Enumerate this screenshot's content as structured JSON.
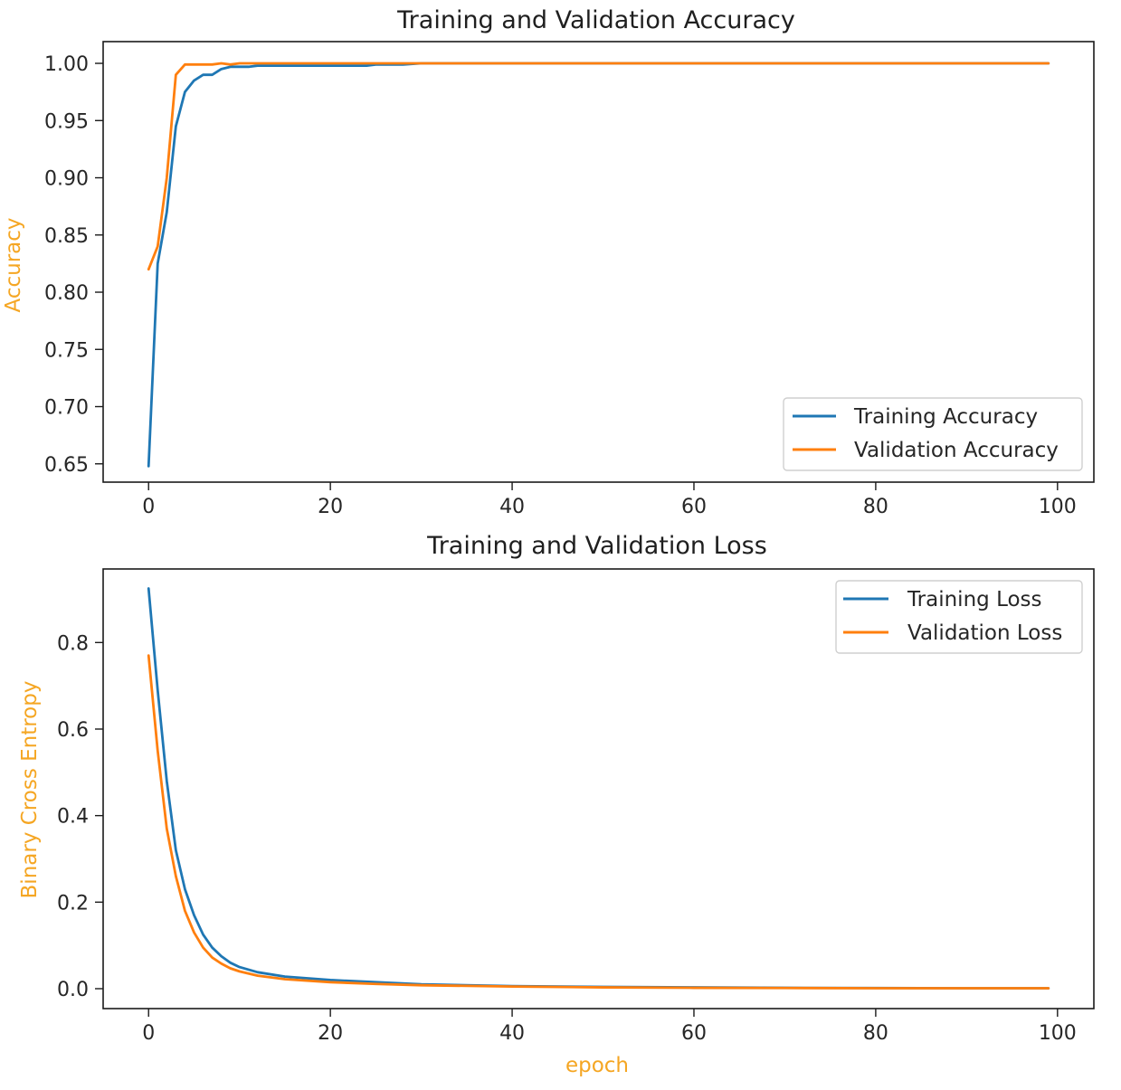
{
  "colors": {
    "training": "#1f77b4",
    "validation": "#ff7f0e",
    "axis_title": "#f5a623",
    "frame": "#1a1a1a"
  },
  "chart_data": [
    {
      "type": "line",
      "title": "Training and Validation Accuracy",
      "xlabel": "",
      "ylabel": "Accuracy",
      "xlim": [
        -5,
        104
      ],
      "ylim": [
        0.634,
        1.019
      ],
      "xticks": [
        0,
        20,
        40,
        60,
        80,
        100
      ],
      "yticks": [
        0.65,
        0.7,
        0.75,
        0.8,
        0.85,
        0.9,
        0.95,
        1.0
      ],
      "xtick_labels": [
        "0",
        "20",
        "40",
        "60",
        "80",
        "100"
      ],
      "ytick_labels": [
        "0.65",
        "0.70",
        "0.75",
        "0.80",
        "0.85",
        "0.90",
        "0.95",
        "1.00"
      ],
      "grid": false,
      "legend_position": "lower-right",
      "series": [
        {
          "name": "Training Accuracy",
          "color": "#1f77b4",
          "points": [
            [
              0,
              0.648
            ],
            [
              1,
              0.825
            ],
            [
              2,
              0.87
            ],
            [
              3,
              0.945
            ],
            [
              4,
              0.975
            ],
            [
              5,
              0.985
            ],
            [
              6,
              0.99
            ],
            [
              7,
              0.99
            ],
            [
              8,
              0.995
            ],
            [
              9,
              0.997
            ],
            [
              10,
              0.997
            ],
            [
              11,
              0.997
            ],
            [
              12,
              0.998
            ],
            [
              15,
              0.998
            ],
            [
              20,
              0.998
            ],
            [
              24,
              0.998
            ],
            [
              25,
              0.999
            ],
            [
              28,
              0.999
            ],
            [
              30,
              1.0
            ],
            [
              40,
              1.0
            ],
            [
              50,
              1.0
            ],
            [
              60,
              1.0
            ],
            [
              70,
              1.0
            ],
            [
              80,
              1.0
            ],
            [
              90,
              1.0
            ],
            [
              99,
              1.0
            ]
          ]
        },
        {
          "name": "Validation Accuracy",
          "color": "#ff7f0e",
          "points": [
            [
              0,
              0.82
            ],
            [
              1,
              0.84
            ],
            [
              2,
              0.9
            ],
            [
              3,
              0.99
            ],
            [
              4,
              0.999
            ],
            [
              5,
              0.999
            ],
            [
              6,
              0.999
            ],
            [
              7,
              0.999
            ],
            [
              8,
              1.0
            ],
            [
              9,
              0.999
            ],
            [
              10,
              1.0
            ],
            [
              12,
              1.0
            ],
            [
              15,
              1.0
            ],
            [
              20,
              1.0
            ],
            [
              30,
              1.0
            ],
            [
              40,
              1.0
            ],
            [
              50,
              1.0
            ],
            [
              60,
              1.0
            ],
            [
              70,
              1.0
            ],
            [
              80,
              1.0
            ],
            [
              90,
              1.0
            ],
            [
              99,
              1.0
            ]
          ]
        }
      ]
    },
    {
      "type": "line",
      "title": "Training and Validation Loss",
      "xlabel": "epoch",
      "ylabel": "Binary Cross Entropy",
      "xlim": [
        -5,
        104
      ],
      "ylim": [
        -0.046,
        0.97
      ],
      "xticks": [
        0,
        20,
        40,
        60,
        80,
        100
      ],
      "yticks": [
        0.0,
        0.2,
        0.4,
        0.6,
        0.8
      ],
      "xtick_labels": [
        "0",
        "20",
        "40",
        "60",
        "80",
        "100"
      ],
      "ytick_labels": [
        "0.0",
        "0.2",
        "0.4",
        "0.6",
        "0.8"
      ],
      "grid": false,
      "legend_position": "upper-right",
      "series": [
        {
          "name": "Training Loss",
          "color": "#1f77b4",
          "points": [
            [
              0,
              0.925
            ],
            [
              1,
              0.69
            ],
            [
              2,
              0.48
            ],
            [
              3,
              0.32
            ],
            [
              4,
              0.23
            ],
            [
              5,
              0.17
            ],
            [
              6,
              0.125
            ],
            [
              7,
              0.095
            ],
            [
              8,
              0.075
            ],
            [
              9,
              0.06
            ],
            [
              10,
              0.05
            ],
            [
              12,
              0.038
            ],
            [
              15,
              0.028
            ],
            [
              20,
              0.02
            ],
            [
              25,
              0.015
            ],
            [
              30,
              0.01
            ],
            [
              40,
              0.006
            ],
            [
              50,
              0.004
            ],
            [
              60,
              0.003
            ],
            [
              70,
              0.002
            ],
            [
              80,
              0.0015
            ],
            [
              90,
              0.001
            ],
            [
              99,
              0.001
            ]
          ]
        },
        {
          "name": "Validation Loss",
          "color": "#ff7f0e",
          "points": [
            [
              0,
              0.77
            ],
            [
              1,
              0.55
            ],
            [
              2,
              0.37
            ],
            [
              3,
              0.26
            ],
            [
              4,
              0.18
            ],
            [
              5,
              0.13
            ],
            [
              6,
              0.095
            ],
            [
              7,
              0.072
            ],
            [
              8,
              0.058
            ],
            [
              9,
              0.047
            ],
            [
              10,
              0.04
            ],
            [
              12,
              0.03
            ],
            [
              15,
              0.022
            ],
            [
              20,
              0.015
            ],
            [
              25,
              0.011
            ],
            [
              30,
              0.008
            ],
            [
              40,
              0.005
            ],
            [
              50,
              0.003
            ],
            [
              60,
              0.002
            ],
            [
              70,
              0.0015
            ],
            [
              80,
              0.001
            ],
            [
              90,
              0.001
            ],
            [
              99,
              0.001
            ]
          ]
        }
      ]
    }
  ]
}
